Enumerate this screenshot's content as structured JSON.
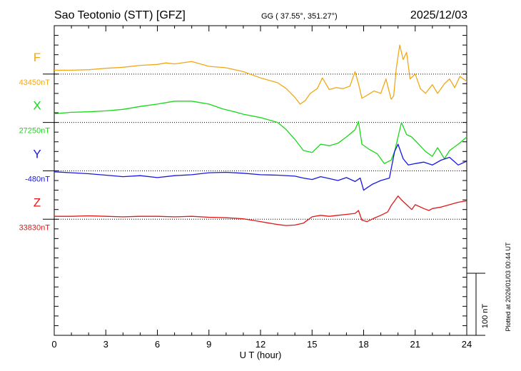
{
  "header": {
    "station": "Sao Teotonio (STT)  [GFZ]",
    "coords": "GG ( 37.55°, 351.27°)",
    "date": "2025/12/03"
  },
  "footer": {
    "plotted": "Plotted at 2026/01/03 00:44 UT"
  },
  "chart_data": {
    "type": "line",
    "title": "",
    "xlabel": "U T (hour)",
    "ylabel": "",
    "xlim": [
      0,
      24
    ],
    "ylim_nT": [
      -240,
      400
    ],
    "x_ticks": [
      "0",
      "3",
      "6",
      "9",
      "12",
      "15",
      "18",
      "21",
      "24"
    ],
    "grid": "dotted horizontal baselines",
    "scale_bar": {
      "label": "100 nT",
      "value_nT": 100
    },
    "series": [
      {
        "name": "F",
        "baseline_label": "43450nT",
        "color": "#f0a818",
        "offset_nT": 300,
        "x": [
          0,
          1,
          2,
          3,
          4,
          5,
          6,
          6.5,
          7,
          8,
          9,
          10,
          11,
          12,
          13,
          13.5,
          14,
          14.3,
          14.6,
          14.9,
          15.3,
          15.6,
          16,
          16.4,
          16.8,
          17.2,
          17.5,
          17.7,
          17.9,
          18.2,
          18.6,
          19,
          19.3,
          19.6,
          19.75,
          19.9,
          20.1,
          20.3,
          20.5,
          20.7,
          21,
          21.3,
          21.6,
          22,
          22.3,
          22.7,
          23,
          23.3,
          23.6,
          24
        ],
        "values": [
          8,
          8,
          9,
          12,
          14,
          18,
          20,
          23,
          21,
          26,
          16,
          13,
          5,
          -8,
          -18,
          -30,
          -48,
          -62,
          -55,
          -40,
          -30,
          -8,
          -32,
          -28,
          -30,
          -25,
          5,
          -20,
          -50,
          -44,
          -35,
          -40,
          -10,
          -52,
          -45,
          12,
          60,
          30,
          45,
          -10,
          0,
          -30,
          -40,
          -22,
          -40,
          -20,
          -10,
          -28,
          -5,
          -15
        ]
      },
      {
        "name": "X",
        "baseline_label": "27250nT",
        "color": "#18d818",
        "offset_nT": 200,
        "x": [
          0,
          1,
          2,
          3,
          4,
          5,
          6,
          7,
          8,
          9,
          9.8,
          10.5,
          11,
          12,
          13,
          13.5,
          14,
          14.5,
          15,
          15.5,
          16,
          16.5,
          17,
          17.5,
          17.7,
          17.9,
          18.3,
          18.8,
          19.2,
          19.6,
          19.8,
          20,
          20.2,
          20.5,
          20.8,
          21.2,
          21.6,
          22,
          22.3,
          22.7,
          23,
          23.5,
          24
        ],
        "values": [
          18,
          21,
          22,
          24,
          27,
          33,
          38,
          44,
          44,
          38,
          28,
          22,
          17,
          10,
          0,
          -15,
          -35,
          -58,
          -62,
          -45,
          -48,
          -43,
          -30,
          -15,
          2,
          -45,
          -55,
          -65,
          -85,
          -78,
          -60,
          -30,
          0,
          -25,
          -30,
          -45,
          -60,
          -70,
          -52,
          -75,
          -58,
          -45,
          -30
        ]
      },
      {
        "name": "Y",
        "baseline_label": "-480nT",
        "color": "#1818e0",
        "offset_nT": 100,
        "x": [
          0,
          1,
          2,
          3,
          4,
          5,
          6,
          7,
          8,
          9,
          10,
          11,
          12,
          13,
          14,
          14.5,
          15,
          15.5,
          16,
          16.5,
          17,
          17.5,
          17.8,
          18,
          18.2,
          18.5,
          19,
          19.5,
          19.8,
          20,
          20.3,
          20.6,
          21,
          21.5,
          22,
          22.5,
          23,
          23.5,
          24
        ],
        "values": [
          -2,
          -4,
          -6,
          -9,
          -12,
          -10,
          -14,
          -10,
          -8,
          -4,
          -3,
          -5,
          -8,
          -9,
          -11,
          -15,
          -18,
          -12,
          -16,
          -20,
          -14,
          -22,
          -15,
          -40,
          -35,
          -28,
          -20,
          -15,
          40,
          55,
          25,
          12,
          15,
          18,
          12,
          22,
          28,
          12,
          20
        ]
      },
      {
        "name": "Z",
        "baseline_label": "33830nT",
        "color": "#e01818",
        "offset_nT": 0,
        "x": [
          0,
          1,
          2,
          3,
          4,
          5,
          6,
          7,
          8,
          9,
          10,
          11,
          12,
          12.5,
          13,
          13.5,
          14,
          14.5,
          15,
          15.5,
          16,
          16.5,
          17,
          17.5,
          17.7,
          17.9,
          18.2,
          18.6,
          19,
          19.4,
          19.6,
          19.8,
          20,
          20.2,
          20.5,
          20.8,
          21,
          21.5,
          21.8,
          22,
          22.5,
          23,
          23.5,
          24
        ],
        "values": [
          6,
          6,
          7,
          6,
          5,
          6,
          6,
          5,
          6,
          4,
          3,
          1,
          -5,
          -8,
          -11,
          -13,
          -12,
          -8,
          5,
          8,
          6,
          8,
          10,
          12,
          18,
          -2,
          -5,
          2,
          8,
          15,
          28,
          38,
          48,
          40,
          30,
          20,
          30,
          22,
          18,
          22,
          25,
          30,
          35,
          38
        ]
      }
    ]
  }
}
